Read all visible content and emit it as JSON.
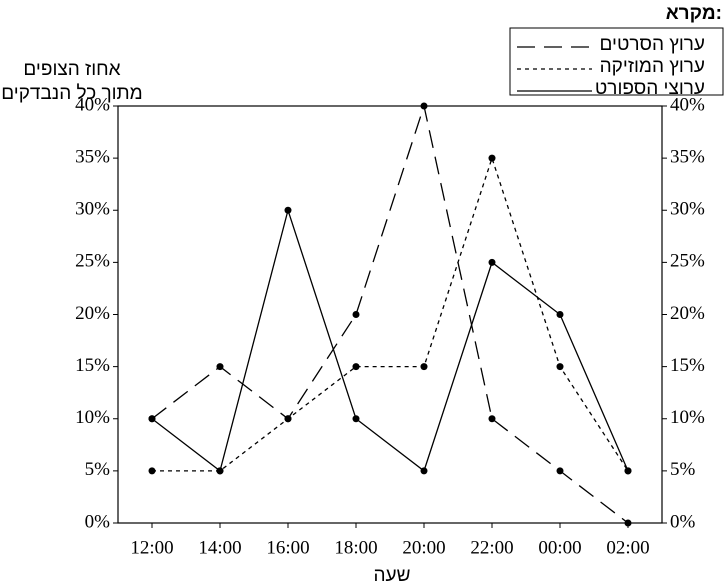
{
  "chart_data": {
    "type": "line",
    "legend_title": "מקרא:",
    "y_label": [
      "אחוז הצופים",
      "מתוך כל הנבדקים"
    ],
    "x_label": "שעה",
    "categories": [
      "12:00",
      "14:00",
      "16:00",
      "18:00",
      "20:00",
      "22:00",
      "00:00",
      "02:00"
    ],
    "series": [
      {
        "name": "ערוץ הסרטים",
        "color": "#000000",
        "linestyle": "dashed",
        "values": [
          10,
          15,
          10,
          20,
          40,
          10,
          5,
          0
        ]
      },
      {
        "name": "ערוץ המוזיקה",
        "color": "#000000",
        "linestyle": "dotted",
        "values": [
          5,
          5,
          10,
          15,
          15,
          35,
          15,
          5
        ]
      },
      {
        "name": "ערוצי הספורט",
        "color": "#000000",
        "linestyle": "solid",
        "values": [
          10,
          5,
          30,
          10,
          5,
          25,
          20,
          5
        ]
      }
    ],
    "ylim": [
      0,
      40
    ],
    "yticks": [
      {
        "value": 0,
        "label": "0%"
      },
      {
        "value": 5,
        "label": "5%"
      },
      {
        "value": 10,
        "label": "10%"
      },
      {
        "value": 15,
        "label": "15%"
      },
      {
        "value": 20,
        "label": "20%"
      },
      {
        "value": 25,
        "label": "25%"
      },
      {
        "value": 30,
        "label": "30%"
      },
      {
        "value": 35,
        "label": "35%"
      },
      {
        "value": 40,
        "label": "40%"
      }
    ],
    "legend": "top-right",
    "grid": false
  }
}
